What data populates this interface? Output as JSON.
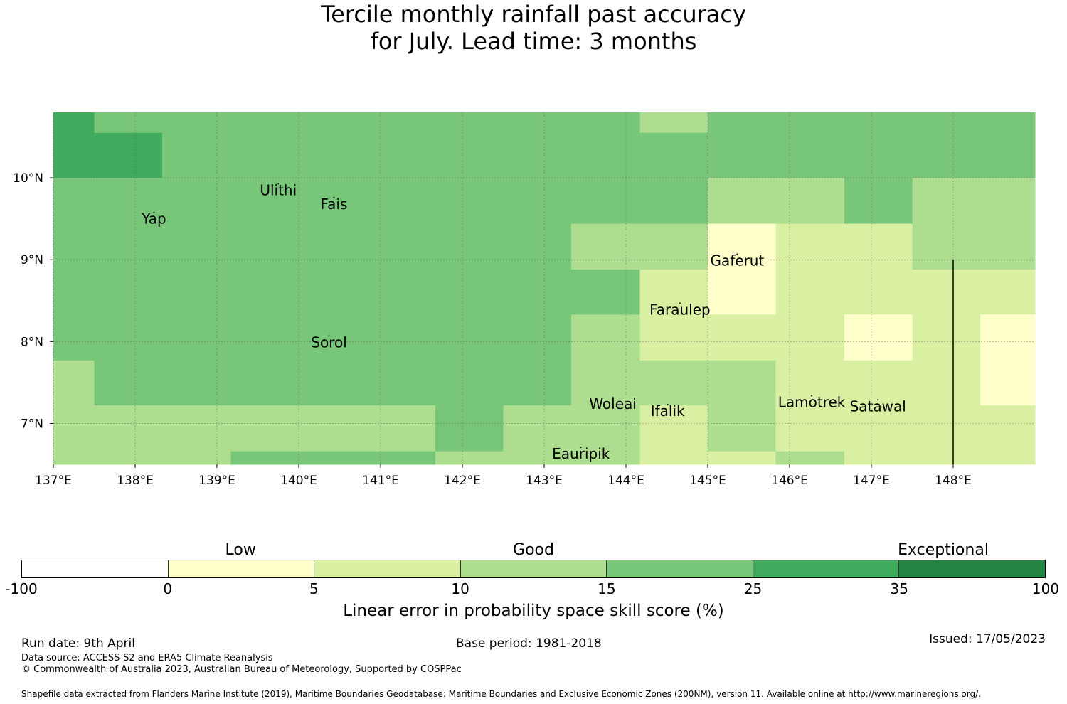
{
  "title": {
    "line1": "Tercile monthly rainfall past accuracy",
    "line2": "for July. Lead time: 3 months"
  },
  "map": {
    "lon_range": [
      137,
      149
    ],
    "lat_range": [
      6.5,
      10.8
    ],
    "lon_ticks": [
      {
        "value": 137,
        "label": "137°E"
      },
      {
        "value": 138,
        "label": "138°E"
      },
      {
        "value": 139,
        "label": "139°E"
      },
      {
        "value": 140,
        "label": "140°E"
      },
      {
        "value": 141,
        "label": "141°E"
      },
      {
        "value": 142,
        "label": "142°E"
      },
      {
        "value": 143,
        "label": "143°E"
      },
      {
        "value": 144,
        "label": "144°E"
      },
      {
        "value": 145,
        "label": "145°E"
      },
      {
        "value": 146,
        "label": "146°E"
      },
      {
        "value": 147,
        "label": "147°E"
      },
      {
        "value": 148,
        "label": "148°E"
      }
    ],
    "lat_ticks": [
      {
        "value": 10,
        "label": "10°N"
      },
      {
        "value": 9,
        "label": "9°N"
      },
      {
        "value": 8,
        "label": "8°N"
      },
      {
        "value": 7,
        "label": "7°N"
      }
    ],
    "grid_lon_edges": [
      137,
      137.5,
      138.33,
      139.17,
      140,
      140.83,
      141.67,
      142.5,
      143.33,
      144.17,
      145,
      145.83,
      146.67,
      147.5,
      148.33,
      149
    ],
    "grid_lat_edges": [
      10.8,
      10.55,
      10,
      9.44,
      8.88,
      8.33,
      7.77,
      7.22,
      6.66,
      6.5
    ],
    "grid_classes": [
      [
        4,
        3,
        3,
        3,
        3,
        3,
        3,
        3,
        3,
        2,
        3,
        3,
        3,
        3,
        3
      ],
      [
        4,
        4,
        3,
        3,
        3,
        3,
        3,
        3,
        3,
        3,
        3,
        3,
        3,
        3,
        3
      ],
      [
        3,
        3,
        3,
        3,
        3,
        3,
        3,
        3,
        3,
        3,
        2,
        2,
        3,
        2,
        2
      ],
      [
        3,
        3,
        3,
        3,
        3,
        3,
        3,
        3,
        2,
        2,
        0,
        1,
        1,
        2,
        2
      ],
      [
        3,
        3,
        3,
        3,
        3,
        3,
        3,
        3,
        3,
        1,
        0,
        1,
        1,
        1,
        1
      ],
      [
        3,
        3,
        3,
        3,
        3,
        3,
        3,
        3,
        2,
        1,
        1,
        1,
        0,
        1,
        0
      ],
      [
        2,
        3,
        3,
        3,
        3,
        3,
        3,
        3,
        2,
        2,
        2,
        1,
        1,
        1,
        0
      ],
      [
        2,
        2,
        2,
        2,
        2,
        2,
        3,
        2,
        2,
        1,
        2,
        1,
        1,
        1,
        1
      ],
      [
        2,
        2,
        2,
        3,
        3,
        3,
        2,
        2,
        2,
        1,
        1,
        2,
        1,
        1,
        1
      ]
    ],
    "boundary_line": {
      "lon": 148,
      "lat_from": 9,
      "lat_to": 6.5
    },
    "places": [
      {
        "name": "Ulithi",
        "lon": 139.75,
        "lat": 9.85
      },
      {
        "name": "Fais",
        "lon": 140.43,
        "lat": 9.68
      },
      {
        "name": "Yap",
        "lon": 138.23,
        "lat": 9.5
      },
      {
        "name": "Gaferut",
        "lon": 145.36,
        "lat": 8.99
      },
      {
        "name": "Faraulep",
        "lon": 144.66,
        "lat": 8.39
      },
      {
        "name": "Sorol",
        "lon": 140.37,
        "lat": 7.99
      },
      {
        "name": "Woleai",
        "lon": 143.84,
        "lat": 7.24
      },
      {
        "name": "Ifalik",
        "lon": 144.51,
        "lat": 7.15
      },
      {
        "name": "Lamotrek",
        "lon": 146.27,
        "lat": 7.26
      },
      {
        "name": "Satawal",
        "lon": 147.08,
        "lat": 7.21
      },
      {
        "name": "Eauripik",
        "lon": 143.45,
        "lat": 6.63
      }
    ],
    "colors": {
      "water_grid": "#555555",
      "boundary": "#000000"
    }
  },
  "colorbar": {
    "segments": [
      {
        "color": "#ffffff"
      },
      {
        "color": "#ffffcc"
      },
      {
        "color": "#d9f0a3"
      },
      {
        "color": "#addd8e"
      },
      {
        "color": "#78c679"
      },
      {
        "color": "#41ab5d"
      },
      {
        "color": "#238443"
      }
    ],
    "ticks": [
      "-100",
      "0",
      "5",
      "10",
      "15",
      "25",
      "35",
      "100"
    ],
    "categories": [
      {
        "label": "Low",
        "position": 0.214
      },
      {
        "label": "Good",
        "position": 0.5
      },
      {
        "label": "Exceptional",
        "position": 0.9
      }
    ],
    "label": "Linear error in probability space skill score (%)"
  },
  "footer": {
    "run_date": "Run date: 9th April",
    "base_period": "Base period: 1981-2018",
    "issued": "Issued: 17/05/2023",
    "data_source": "Data source: ACCESS-S2 and ERA5 Climate Reanalysis",
    "copyright": "© Commonwealth of Australia 2023, Australian Bureau of Meteorology, Supported by COSPPac",
    "shapefile": "Shapefile data extracted from Flanders Marine Institute (2019), Maritime Boundaries Geodatabase: Maritime Boundaries and Exclusive Economic Zones (200NM), version 11. Available online at http://www.marineregions.org/."
  }
}
